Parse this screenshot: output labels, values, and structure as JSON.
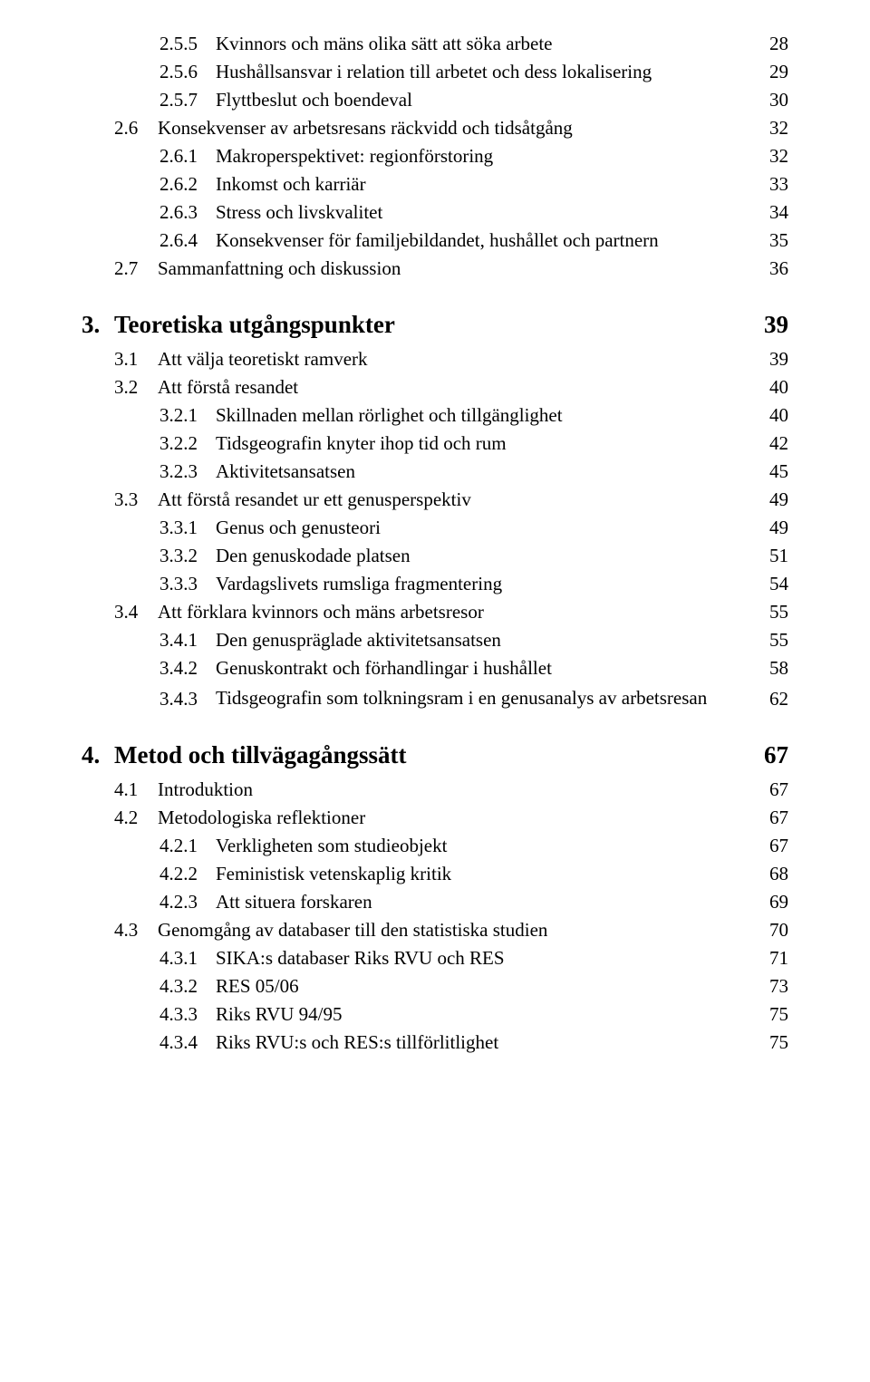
{
  "entries": [
    {
      "level": 3,
      "num": "2.5.5",
      "title": "Kvinnors och mäns olika sätt att söka arbete",
      "page": "28"
    },
    {
      "level": 3,
      "num": "2.5.6",
      "title": "Hushållsansvar i relation till arbetet och dess lokalisering",
      "page": "29"
    },
    {
      "level": 3,
      "num": "2.5.7",
      "title": "Flyttbeslut och boendeval",
      "page": "30"
    },
    {
      "level": 2,
      "num": "2.6",
      "title": "Konsekvenser av arbetsresans räckvidd och tidsåtgång",
      "page": "32"
    },
    {
      "level": 3,
      "num": "2.6.1",
      "title": "Makroperspektivet: regionförstoring",
      "page": "32"
    },
    {
      "level": 3,
      "num": "2.6.2",
      "title": "Inkomst och karriär",
      "page": "33"
    },
    {
      "level": 3,
      "num": "2.6.3",
      "title": "Stress och livskvalitet",
      "page": "34"
    },
    {
      "level": 3,
      "num": "2.6.4",
      "title": "Konsekvenser för familjebildandet, hushållet och partnern",
      "page": "35"
    },
    {
      "level": 2,
      "num": "2.7",
      "title": "Sammanfattning och diskussion",
      "page": "36"
    },
    {
      "level": 1,
      "num": "3.",
      "title": "Teoretiska utgångspunkter",
      "page": "39",
      "heading": true
    },
    {
      "level": 2,
      "num": "3.1",
      "title": "Att välja teoretiskt ramverk",
      "page": "39"
    },
    {
      "level": 2,
      "num": "3.2",
      "title": "Att förstå resandet",
      "page": "40"
    },
    {
      "level": 3,
      "num": "3.2.1",
      "title": "Skillnaden mellan rörlighet och tillgänglighet",
      "page": "40"
    },
    {
      "level": 3,
      "num": "3.2.2",
      "title": "Tidsgeografin knyter ihop tid och rum",
      "page": "42"
    },
    {
      "level": 3,
      "num": "3.2.3",
      "title": "Aktivitetsansatsen",
      "page": "45"
    },
    {
      "level": 2,
      "num": "3.3",
      "title": "Att förstå resandet ur ett genusperspektiv",
      "page": "49"
    },
    {
      "level": 3,
      "num": "3.3.1",
      "title": "Genus och genusteori",
      "page": "49"
    },
    {
      "level": 3,
      "num": "3.3.2",
      "title": "Den genuskodade platsen",
      "page": "51"
    },
    {
      "level": 3,
      "num": "3.3.3",
      "title": "Vardagslivets rumsliga fragmentering",
      "page": "54"
    },
    {
      "level": 2,
      "num": "3.4",
      "title": "Att förklara kvinnors och mäns arbetsresor",
      "page": "55"
    },
    {
      "level": 3,
      "num": "3.4.1",
      "title": "Den genuspräglade aktivitetsansatsen",
      "page": "55"
    },
    {
      "level": 3,
      "num": "3.4.2",
      "title": "Genuskontrakt och förhandlingar i hushållet",
      "page": "58"
    },
    {
      "level": 3,
      "num": "3.4.3",
      "title": "Tidsgeografin som tolkningsram i en genusanalys av arbetsresan",
      "page": "62",
      "multiline": true
    },
    {
      "level": 1,
      "num": "4.",
      "title": "Metod och tillvägagångssätt",
      "page": "67",
      "heading": true
    },
    {
      "level": 2,
      "num": "4.1",
      "title": "Introduktion",
      "page": "67"
    },
    {
      "level": 2,
      "num": "4.2",
      "title": "Metodologiska reflektioner",
      "page": "67"
    },
    {
      "level": 3,
      "num": "4.2.1",
      "title": "Verkligheten som studieobjekt",
      "page": "67"
    },
    {
      "level": 3,
      "num": "4.2.2",
      "title": "Feministisk vetenskaplig kritik",
      "page": "68"
    },
    {
      "level": 3,
      "num": "4.2.3",
      "title": "Att situera forskaren",
      "page": "69"
    },
    {
      "level": 2,
      "num": "4.3",
      "title": "Genomgång av databaser till den statistiska studien",
      "page": "70"
    },
    {
      "level": 3,
      "num": "4.3.1",
      "title": "SIKA:s databaser Riks RVU och RES",
      "page": "71"
    },
    {
      "level": 3,
      "num": "4.3.2",
      "title": "RES 05/06",
      "page": "73"
    },
    {
      "level": 3,
      "num": "4.3.3",
      "title": "Riks RVU 94/95",
      "page": "75"
    },
    {
      "level": 3,
      "num": "4.3.4",
      "title": "Riks RVU:s och RES:s tillförlitlighet",
      "page": "75"
    }
  ]
}
